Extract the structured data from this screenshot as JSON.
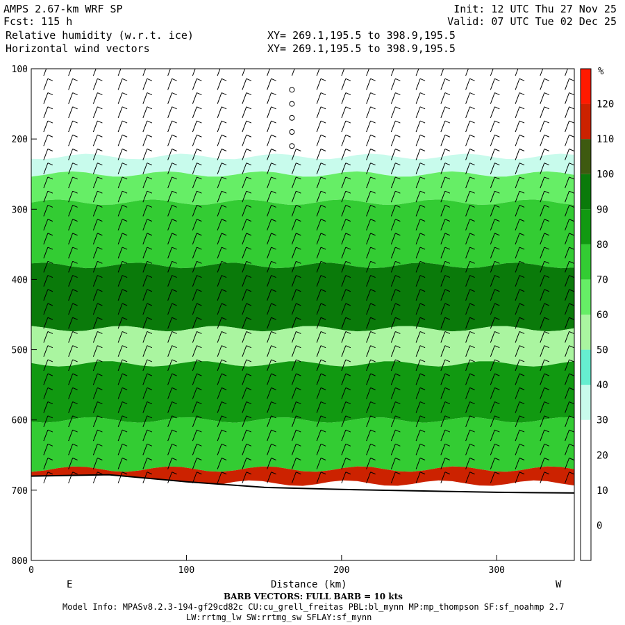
{
  "header": {
    "model": "AMPS 2.67-km WRF SP",
    "fcst": "Fcst: 115 h",
    "field": "Relative humidity (w.r.t. ice)",
    "vectors": "Horizontal wind vectors",
    "init": "Init: 12 UTC Thu 27 Nov 25",
    "valid": "Valid: 07 UTC Tue 02 Dec 25",
    "xy1": "XY= 269.1,195.5 to 398.9,195.5",
    "xy2": "XY= 269.1,195.5 to 398.9,195.5"
  },
  "footer": {
    "barb_note": "BARB VECTORS: FULL BARB = 10 kts",
    "model_info": "Model Info: MPASv8.2.3-194-gf29cd82c CU:cu_grell_freitas PBL:bl_mynn MP:mp_thompson SF:sf_noahmp 2.7",
    "model_info2": "LW:rrtmg_lw SW:rrtmg_sw SFLAY:sf_mynn"
  },
  "chart_data": {
    "type": "heatmap",
    "xlabel": "Distance (km)",
    "ylabel": "",
    "xlim": [
      0,
      350
    ],
    "ylim": [
      100,
      800
    ],
    "x_ticks": [
      0,
      100,
      200,
      300
    ],
    "y_ticks": [
      100,
      200,
      300,
      400,
      500,
      600,
      700,
      800
    ],
    "x_end_labels": [
      "E",
      "W"
    ],
    "colorbar": {
      "unit": "%",
      "levels": [
        0,
        10,
        20,
        30,
        40,
        50,
        60,
        70,
        80,
        90,
        100,
        110,
        120
      ],
      "colors": [
        "#ffffff",
        "#ffffff",
        "#ffffff",
        "#ffffff",
        "#c8fbec",
        "#66eed0",
        "#aaf5a0",
        "#66ee66",
        "#33cc33",
        "#119911",
        "#0a7a0a",
        "#3e5a10",
        "#cc2200",
        "#ff1a00"
      ]
    },
    "terrain_pressure": [
      [
        0,
        680
      ],
      [
        50,
        678
      ],
      [
        100,
        688
      ],
      [
        150,
        696
      ],
      [
        200,
        699
      ],
      [
        250,
        701
      ],
      [
        300,
        703
      ],
      [
        350,
        704
      ]
    ],
    "rh_bands": [
      {
        "p_top": 100,
        "p_bot": 225,
        "rh": 10
      },
      {
        "p_top": 225,
        "p_bot": 250,
        "rh": 35
      },
      {
        "p_top": 250,
        "p_bot": 290,
        "rh": 65
      },
      {
        "p_top": 290,
        "p_bot": 380,
        "rh": 75
      },
      {
        "p_top": 380,
        "p_bot": 470,
        "rh": 90
      },
      {
        "p_top": 470,
        "p_bot": 520,
        "rh": 55
      },
      {
        "p_top": 520,
        "p_bot": 600,
        "rh": 80
      },
      {
        "p_top": 600,
        "p_bot": 670,
        "rh": 75
      },
      {
        "p_top": 670,
        "p_bot": 690,
        "rh": 115
      }
    ],
    "annotations": []
  }
}
